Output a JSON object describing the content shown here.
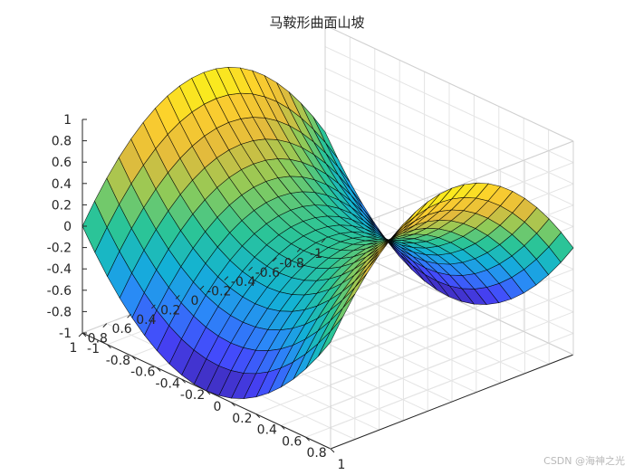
{
  "chart_data": {
    "type": "surface",
    "title": "马鞍形曲面山坡",
    "function": "z = x^2 - y^2",
    "grid_points": 21,
    "xlim": [
      -1,
      1
    ],
    "ylim": [
      -1,
      1
    ],
    "zlim": [
      -1,
      1
    ],
    "x_ticks": [
      "-1",
      "-0.8",
      "-0.6",
      "-0.4",
      "-0.2",
      "0",
      "0.2",
      "0.4",
      "0.6",
      "0.8",
      "1"
    ],
    "y_ticks": [
      "1",
      "0.8",
      "0.6",
      "0.4",
      "0.2",
      "0",
      "-0.2",
      "-0.4",
      "-0.6",
      "-0.8",
      "-1"
    ],
    "z_ticks": [
      "1",
      "0.8",
      "0.6",
      "0.4",
      "0.2",
      "0",
      "-0.2",
      "-0.4",
      "-0.6",
      "-0.8",
      "-1"
    ],
    "colormap": [
      "#3e26a8",
      "#4643fb",
      "#2b88f8",
      "#12b2d5",
      "#2bc498",
      "#8dcb59",
      "#e3bb3c",
      "#fcce2e",
      "#f9fb15"
    ],
    "grid": true
  },
  "watermark": "CSDN @海神之光"
}
